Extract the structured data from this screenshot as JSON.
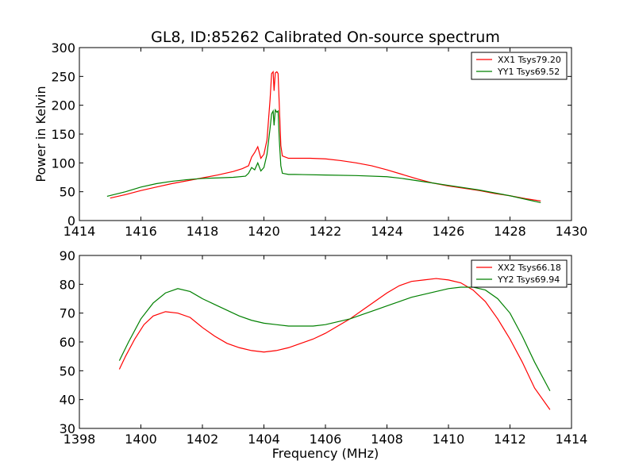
{
  "title": "GL8, ID:85262 Calibrated On-source spectrum",
  "chart_data": [
    {
      "type": "line",
      "ylabel": "Power in Kelvin",
      "xlabel": "",
      "xlim": [
        1414,
        1430
      ],
      "ylim": [
        0,
        300
      ],
      "xticks": [
        "1414",
        "1416",
        "1418",
        "1420",
        "1422",
        "1424",
        "1426",
        "1428",
        "1430"
      ],
      "yticks": [
        "0",
        "50",
        "100",
        "150",
        "200",
        "250",
        "300"
      ],
      "legend_position": "top-right",
      "series": [
        {
          "name": "XX1 Tsys79.20",
          "color": "#ff0000",
          "points": [
            [
              1415.0,
              39
            ],
            [
              1415.5,
              45
            ],
            [
              1416,
              52
            ],
            [
              1416.5,
              58
            ],
            [
              1417,
              64
            ],
            [
              1417.5,
              69
            ],
            [
              1418,
              74
            ],
            [
              1418.5,
              79
            ],
            [
              1419,
              85
            ],
            [
              1419.3,
              90
            ],
            [
              1419.5,
              95
            ],
            [
              1419.6,
              110
            ],
            [
              1419.7,
              118
            ],
            [
              1419.8,
              128
            ],
            [
              1419.9,
              108
            ],
            [
              1420.0,
              115
            ],
            [
              1420.1,
              140
            ],
            [
              1420.2,
              210
            ],
            [
              1420.25,
              255
            ],
            [
              1420.3,
              258
            ],
            [
              1420.33,
              225
            ],
            [
              1420.37,
              256
            ],
            [
              1420.42,
              258
            ],
            [
              1420.46,
              255
            ],
            [
              1420.5,
              200
            ],
            [
              1420.55,
              130
            ],
            [
              1420.6,
              112
            ],
            [
              1420.8,
              108
            ],
            [
              1421,
              108
            ],
            [
              1421.5,
              108
            ],
            [
              1422,
              107
            ],
            [
              1422.5,
              104
            ],
            [
              1423,
              100
            ],
            [
              1423.5,
              95
            ],
            [
              1424,
              88
            ],
            [
              1424.5,
              80
            ],
            [
              1425,
              72
            ],
            [
              1425.5,
              65
            ],
            [
              1426,
              60
            ],
            [
              1426.5,
              56
            ],
            [
              1427,
              52
            ],
            [
              1427.5,
              47
            ],
            [
              1428,
              43
            ],
            [
              1428.5,
              38
            ],
            [
              1429,
              34
            ]
          ]
        },
        {
          "name": "YY1 Tsys69.52",
          "color": "#008000",
          "points": [
            [
              1414.9,
              42
            ],
            [
              1415.5,
              50
            ],
            [
              1416,
              58
            ],
            [
              1416.5,
              64
            ],
            [
              1417,
              68
            ],
            [
              1417.5,
              71
            ],
            [
              1418,
              73
            ],
            [
              1418.5,
              74
            ],
            [
              1419,
              75
            ],
            [
              1419.4,
              77
            ],
            [
              1419.5,
              82
            ],
            [
              1419.6,
              92
            ],
            [
              1419.7,
              88
            ],
            [
              1419.8,
              100
            ],
            [
              1419.9,
              86
            ],
            [
              1420.0,
              92
            ],
            [
              1420.1,
              115
            ],
            [
              1420.2,
              160
            ],
            [
              1420.25,
              185
            ],
            [
              1420.3,
              190
            ],
            [
              1420.33,
              165
            ],
            [
              1420.37,
              192
            ],
            [
              1420.42,
              188
            ],
            [
              1420.46,
              190
            ],
            [
              1420.5,
              140
            ],
            [
              1420.55,
              95
            ],
            [
              1420.6,
              82
            ],
            [
              1420.8,
              80
            ],
            [
              1421,
              80
            ],
            [
              1422,
              79
            ],
            [
              1423,
              78
            ],
            [
              1424,
              76
            ],
            [
              1424.5,
              73
            ],
            [
              1425,
              69
            ],
            [
              1425.5,
              65
            ],
            [
              1426,
              61
            ],
            [
              1426.5,
              57
            ],
            [
              1427,
              53
            ],
            [
              1427.5,
              48
            ],
            [
              1428,
              43
            ],
            [
              1428.5,
              37
            ],
            [
              1429,
              31
            ]
          ]
        }
      ]
    },
    {
      "type": "line",
      "ylabel": "",
      "xlabel": "Frequency (MHz)",
      "xlim": [
        1398,
        1414
      ],
      "ylim": [
        30,
        90
      ],
      "xticks": [
        "1398",
        "1400",
        "1402",
        "1404",
        "1406",
        "1408",
        "1410",
        "1412",
        "1414"
      ],
      "yticks": [
        "30",
        "40",
        "50",
        "60",
        "70",
        "80",
        "90"
      ],
      "legend_position": "top-right",
      "series": [
        {
          "name": "XX2 Tsys66.18",
          "color": "#ff0000",
          "points": [
            [
              1399.3,
              50.5
            ],
            [
              1399.5,
              55
            ],
            [
              1399.8,
              61
            ],
            [
              1400.1,
              66
            ],
            [
              1400.4,
              69
            ],
            [
              1400.8,
              70.5
            ],
            [
              1401.2,
              70
            ],
            [
              1401.6,
              68.5
            ],
            [
              1402,
              65
            ],
            [
              1402.4,
              62
            ],
            [
              1402.8,
              59.5
            ],
            [
              1403.2,
              58
            ],
            [
              1403.6,
              57
            ],
            [
              1404,
              56.5
            ],
            [
              1404.4,
              57
            ],
            [
              1404.8,
              58
            ],
            [
              1405.2,
              59.5
            ],
            [
              1405.6,
              61
            ],
            [
              1406,
              63
            ],
            [
              1406.4,
              65.5
            ],
            [
              1406.8,
              68
            ],
            [
              1407.2,
              71
            ],
            [
              1407.6,
              74
            ],
            [
              1408,
              77
            ],
            [
              1408.4,
              79.5
            ],
            [
              1408.8,
              81
            ],
            [
              1409.2,
              81.5
            ],
            [
              1409.6,
              82
            ],
            [
              1410,
              81.5
            ],
            [
              1410.4,
              80.5
            ],
            [
              1410.8,
              78
            ],
            [
              1411.2,
              74
            ],
            [
              1411.6,
              68
            ],
            [
              1412,
              61
            ],
            [
              1412.4,
              53
            ],
            [
              1412.8,
              44
            ],
            [
              1413.3,
              36.5
            ]
          ]
        },
        {
          "name": "YY2 Tsys69.94",
          "color": "#008000",
          "points": [
            [
              1399.3,
              53.5
            ],
            [
              1399.6,
              60
            ],
            [
              1400,
              68
            ],
            [
              1400.4,
              73.5
            ],
            [
              1400.8,
              77
            ],
            [
              1401.2,
              78.5
            ],
            [
              1401.6,
              77.5
            ],
            [
              1402,
              75
            ],
            [
              1402.4,
              73
            ],
            [
              1402.8,
              71
            ],
            [
              1403.2,
              69
            ],
            [
              1403.6,
              67.5
            ],
            [
              1404,
              66.5
            ],
            [
              1404.4,
              66
            ],
            [
              1404.8,
              65.5
            ],
            [
              1405.2,
              65.5
            ],
            [
              1405.6,
              65.5
            ],
            [
              1406,
              66
            ],
            [
              1406.4,
              67
            ],
            [
              1406.8,
              68
            ],
            [
              1407.2,
              69.5
            ],
            [
              1407.6,
              71
            ],
            [
              1408,
              72.5
            ],
            [
              1408.4,
              74
            ],
            [
              1408.8,
              75.5
            ],
            [
              1409.2,
              76.5
            ],
            [
              1409.6,
              77.5
            ],
            [
              1410,
              78.5
            ],
            [
              1410.4,
              79
            ],
            [
              1410.8,
              79
            ],
            [
              1411.2,
              78
            ],
            [
              1411.6,
              75
            ],
            [
              1412,
              70
            ],
            [
              1412.4,
              62
            ],
            [
              1412.8,
              53
            ],
            [
              1413.3,
              43
            ]
          ]
        }
      ]
    }
  ]
}
